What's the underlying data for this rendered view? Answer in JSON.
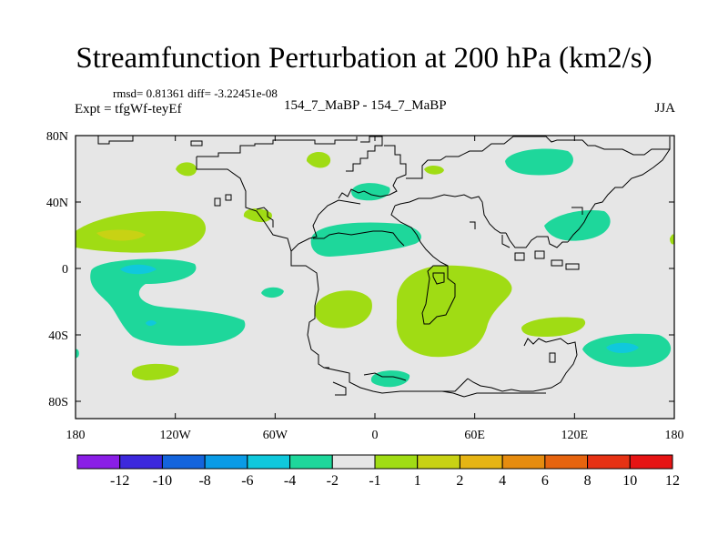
{
  "title": "Streamfunction Perturbation at 200 hPa (km2/s)",
  "stats": "rmsd= 0.81361 diff= -3.22451e-08",
  "experiment": "Expt = tfgWf-teyEf",
  "subtitle": "154_7_MaBP - 154_7_MaBP",
  "season": "JJA",
  "chart_data": {
    "type": "heatmap",
    "x_ticks": [
      "180",
      "120W",
      "60W",
      "0",
      "60E",
      "120E",
      "180"
    ],
    "y_ticks": [
      "80N",
      "40N",
      "0",
      "40S",
      "80S"
    ],
    "colorbar_labels": [
      "-12",
      "-10",
      "-8",
      "-6",
      "-4",
      "-2",
      "-1",
      "1",
      "2",
      "4",
      "6",
      "8",
      "10",
      "12"
    ],
    "colorbar_colors": [
      "#8a1ee6",
      "#3c28dc",
      "#1464dc",
      "#0a9be6",
      "#10c8dc",
      "#1ed79b",
      "#e6e6e6",
      "#a0dc14",
      "#c8d214",
      "#e6b414",
      "#e68c0f",
      "#e6640f",
      "#e63214",
      "#e61414"
    ],
    "colors": {
      "background": "#e6e6e6",
      "pos_light": "#a0dc14",
      "pos_mid": "#c8d214",
      "neg_light": "#1ed79b",
      "neg_mid": "#10c8dc"
    }
  }
}
